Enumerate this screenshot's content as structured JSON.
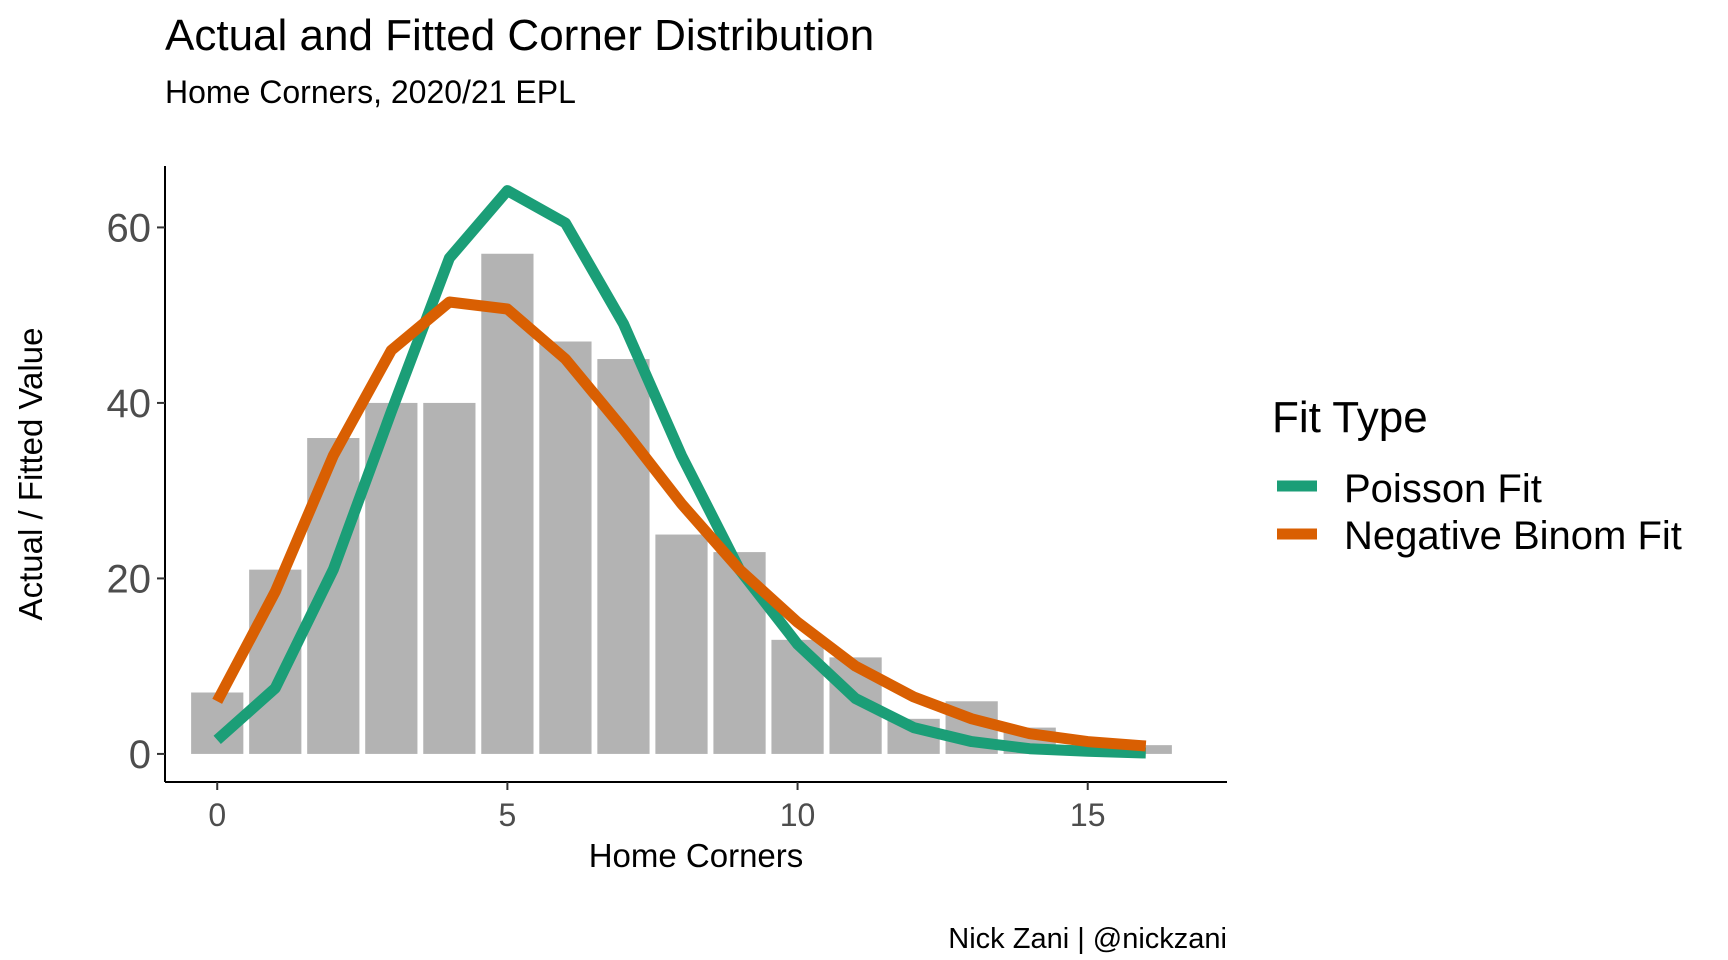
{
  "chart_data": {
    "type": "bar",
    "title": "Actual and Fitted Corner Distribution",
    "subtitle": "Home Corners, 2020/21 EPL",
    "xlabel": "Home Corners",
    "ylabel": "Actual / Fitted Value",
    "caption": "Nick Zani | @nickzani",
    "x": [
      0,
      1,
      2,
      3,
      4,
      5,
      6,
      7,
      8,
      9,
      10,
      11,
      12,
      13,
      14,
      15,
      16
    ],
    "values": [
      7,
      21,
      36,
      40,
      40,
      57,
      47,
      45,
      25,
      23,
      13,
      11,
      4,
      6,
      3,
      1,
      1
    ],
    "bar_color": "#b3b3b3",
    "xlim": [
      -0.9,
      17.4
    ],
    "ylim": [
      -3.2,
      67
    ],
    "x_ticks": [
      0,
      5,
      10,
      15
    ],
    "y_ticks": [
      0,
      20,
      40,
      60
    ],
    "grid": false,
    "legend": {
      "title": "Fit Type",
      "position": "right"
    },
    "series": [
      {
        "name": "Poisson Fit",
        "type": "line",
        "color": "#1b9e77",
        "values": [
          1.6,
          7.5,
          21,
          39,
          56.5,
          64.2,
          60.5,
          49,
          34,
          21,
          12.5,
          6.3,
          3,
          1.4,
          0.6,
          0.3,
          0.1
        ]
      },
      {
        "name": "Negative Binom Fit",
        "type": "line",
        "color": "#d95f02",
        "values": [
          6,
          18.5,
          34,
          46,
          51.5,
          50.7,
          45,
          37,
          28.5,
          21,
          15,
          10,
          6.5,
          4,
          2.3,
          1.4,
          0.9
        ]
      }
    ]
  }
}
